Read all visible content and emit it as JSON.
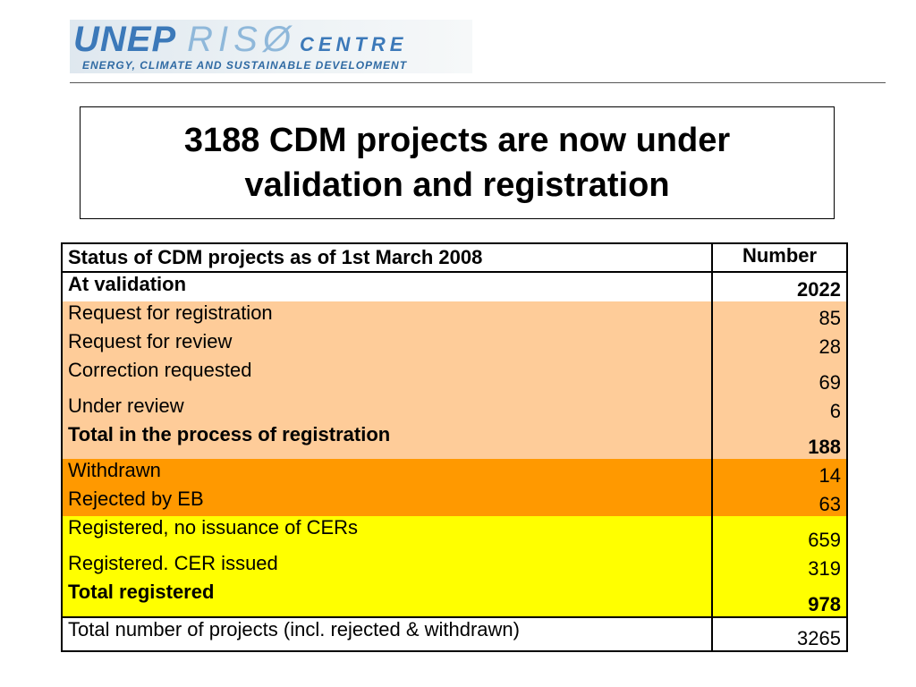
{
  "logo": {
    "word1": "UNEP",
    "word2": "RISØ",
    "word3": "CENTRE",
    "tagline": "ENERGY, CLIMATE AND SUSTAINABLE DEVELOPMENT"
  },
  "title": "3188 CDM projects are now under validation and registration",
  "table": {
    "header": {
      "label": "Status of CDM projects as of 1st March 2008",
      "value": "Number"
    },
    "rows": [
      {
        "label": "At validation",
        "value": "2022"
      },
      {
        "label": "Request for registration",
        "value": "85"
      },
      {
        "label": "Request for review",
        "value": "28"
      },
      {
        "label": "Correction requested",
        "value": "69"
      },
      {
        "label": "Under review",
        "value": "6"
      },
      {
        "label": "Total in the process of registration",
        "value": "188"
      },
      {
        "label": "Withdrawn",
        "value": "14"
      },
      {
        "label": "Rejected by EB",
        "value": "63"
      },
      {
        "label": "Registered, no issuance of CERs",
        "value": "659"
      },
      {
        "label": "Registered. CER issued",
        "value": "319"
      },
      {
        "label": "Total registered",
        "value": "978"
      },
      {
        "label": "Total number of projects (incl. rejected & withdrawn)",
        "value": "3265"
      }
    ]
  },
  "colors": {
    "peach": "#fecc99",
    "orange": "#ff9900",
    "yellow": "#ffff00",
    "logo_blue": "#3c79b9"
  }
}
